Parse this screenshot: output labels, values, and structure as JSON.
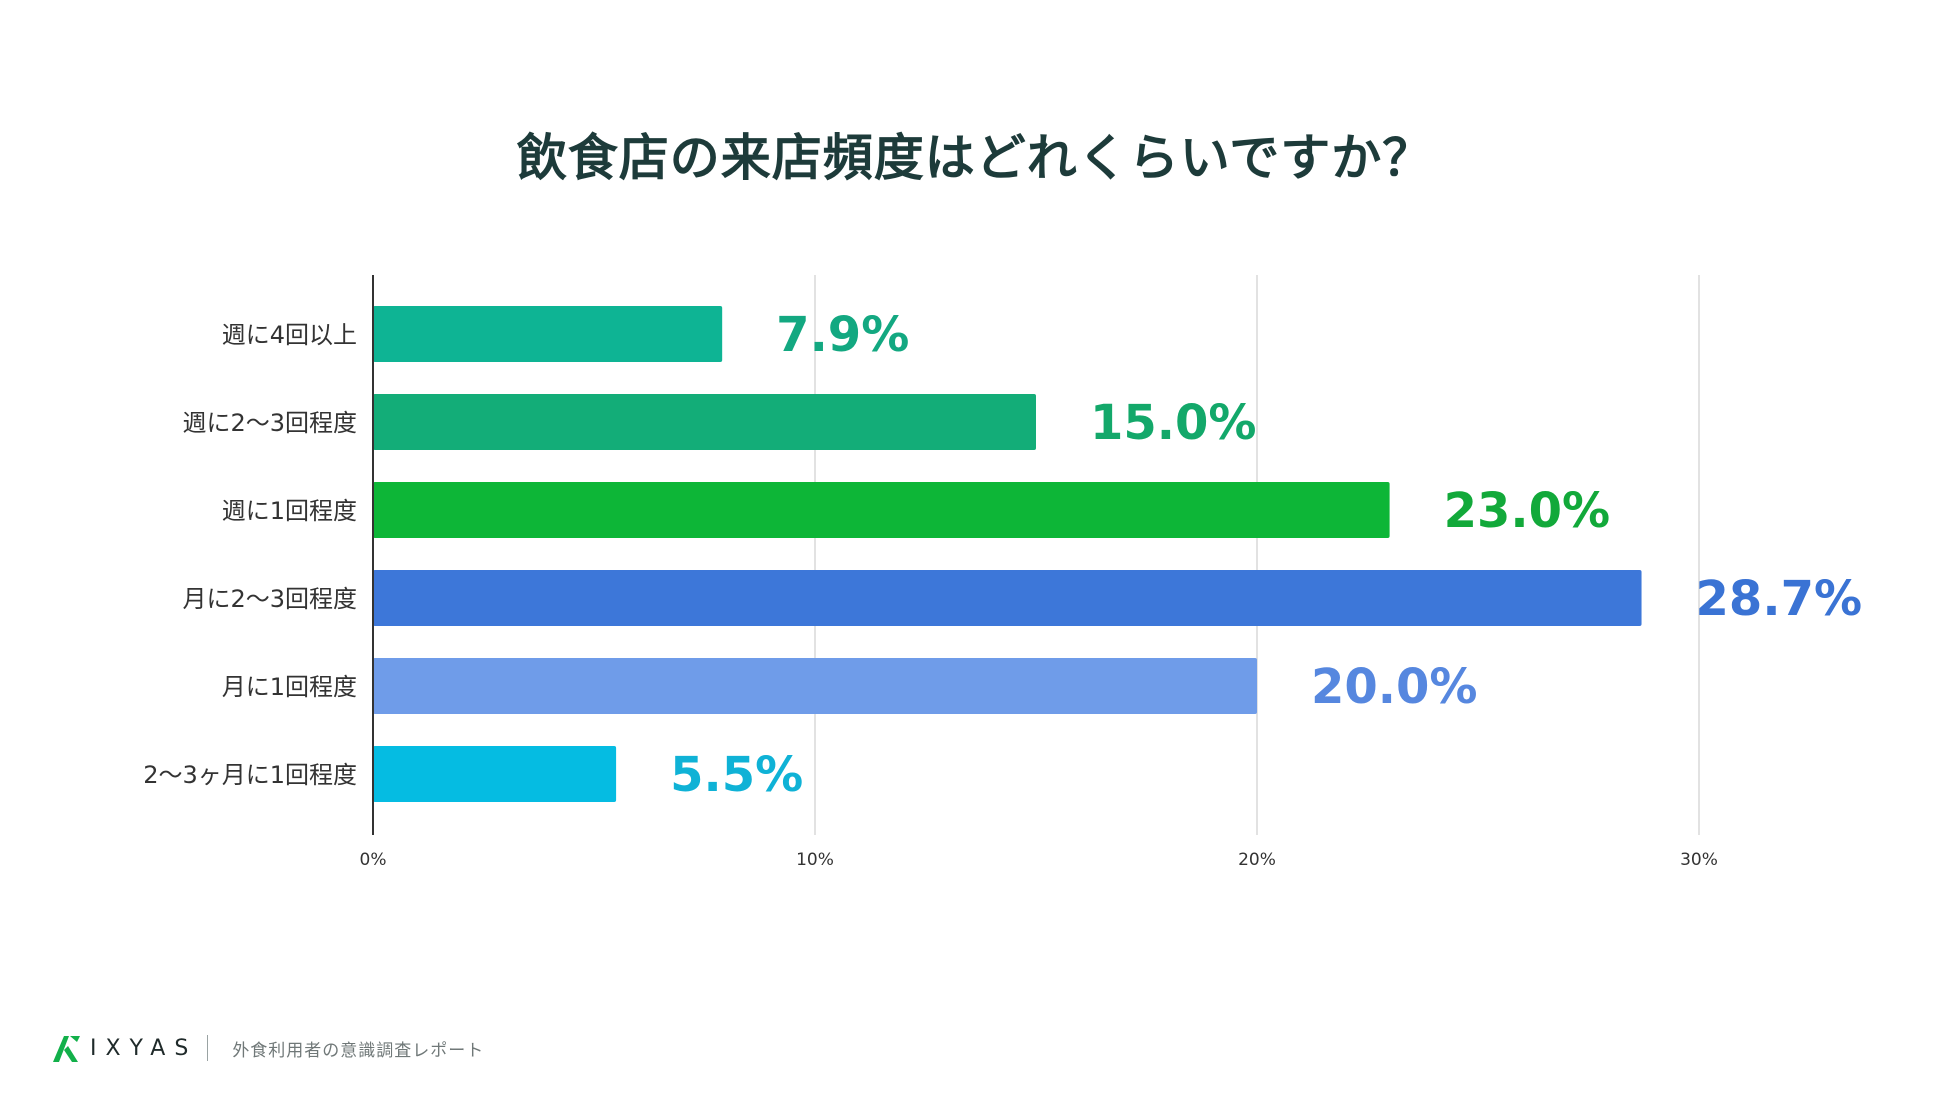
{
  "title": "飲食店の来店頻度はどれくらいですか？",
  "chart_data": {
    "type": "bar",
    "orientation": "horizontal",
    "title": "飲食店の来店頻度はどれくらいですか？",
    "categories": [
      "週に4回以上",
      "週に2〜3回程度",
      "週に1回程度",
      "月に2〜3回程度",
      "月に1回程度",
      "2〜3ヶ月に1回程度"
    ],
    "values": [
      7.9,
      15.0,
      23.0,
      28.7,
      20.0,
      5.5
    ],
    "value_labels": [
      "7.9%",
      "15.0%",
      "23.0%",
      "28.7%",
      "20.0%",
      "5.5%"
    ],
    "colors": [
      "#0eb494",
      "#13ad78",
      "#0db637",
      "#3d77d9",
      "#6f9ce9",
      "#05bce2"
    ],
    "label_colors": [
      "#13a881",
      "#13a86a",
      "#12a93a",
      "#3a73d4",
      "#5687df",
      "#0fb2d6"
    ],
    "xlim": [
      0,
      30
    ],
    "xticks": [
      0,
      10,
      20,
      30
    ],
    "xtick_labels": [
      "0%",
      "10%",
      "20%",
      "30%"
    ],
    "grid": true,
    "xlabel": "",
    "ylabel": ""
  },
  "footer": {
    "logo_text": "IXYAS",
    "caption": "外食利用者の意識調査レポート"
  }
}
